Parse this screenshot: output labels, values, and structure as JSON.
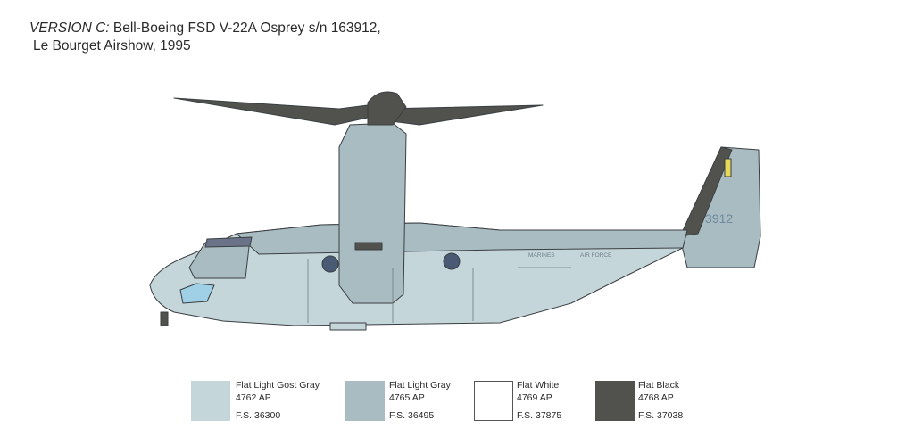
{
  "title": {
    "version": "VERSION C:",
    "line1": " Bell-Boeing FSD V-22A Osprey s/n 163912,",
    "line2": "Le Bourget Airshow, 1995"
  },
  "markings": {
    "fuselage_text_left": "MARINES",
    "fuselage_text_right": "AIR FORCE",
    "tail_number": "3912"
  },
  "colors": [
    {
      "name": "Flat Light Gost Gray",
      "code": "4762 AP",
      "fs": "F.S. 36300",
      "hex": "#c5d6da"
    },
    {
      "name": "Flat Light Gray",
      "code": "4765 AP",
      "fs": "F.S. 36495",
      "hex": "#a9bcc1"
    },
    {
      "name": "Flat White",
      "code": "4769 AP",
      "fs": "F.S. 37875",
      "hex": "#ffffff"
    },
    {
      "name": "Flat Black",
      "code": "4768 AP",
      "fs": "F.S. 37038",
      "hex": "#51524d"
    }
  ]
}
